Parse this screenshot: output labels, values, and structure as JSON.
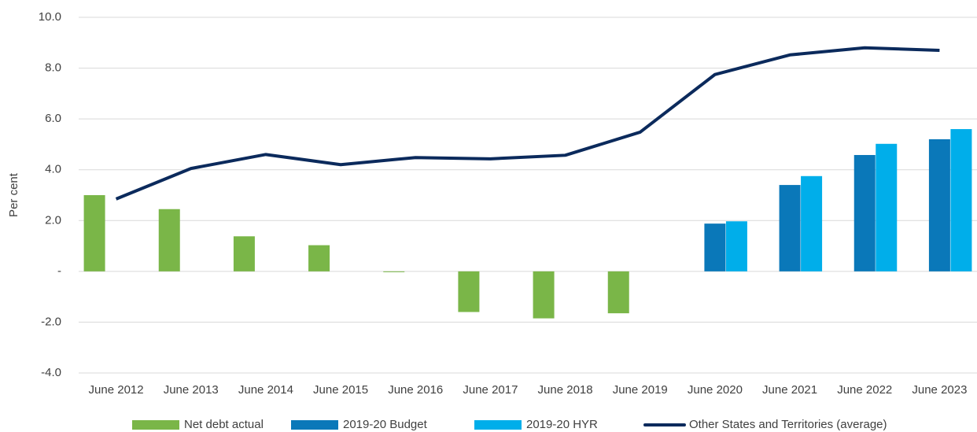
{
  "chart_data": {
    "type": "bar-line",
    "ylabel": "Per cent",
    "categories": [
      "June 2012",
      "June 2013",
      "June 2014",
      "June 2015",
      "June 2016",
      "June 2017",
      "June 2018",
      "June 2019",
      "June 2020",
      "June 2021",
      "June 2022",
      "June 2023"
    ],
    "series": [
      {
        "name": "Net debt actual",
        "type": "bar",
        "color": "#7ab648",
        "values": [
          3.0,
          2.45,
          1.38,
          1.03,
          -0.03,
          -1.6,
          -1.85,
          -1.65,
          null,
          null,
          null,
          null
        ]
      },
      {
        "name": "2019-20 Budget",
        "type": "bar",
        "color": "#0a78b9",
        "values": [
          null,
          null,
          null,
          null,
          null,
          null,
          null,
          null,
          1.88,
          3.4,
          4.58,
          5.2
        ]
      },
      {
        "name": "2019-20 HYR",
        "type": "bar",
        "color": "#00aeea",
        "values": [
          null,
          null,
          null,
          null,
          null,
          null,
          null,
          null,
          1.97,
          3.75,
          5.02,
          5.6
        ]
      },
      {
        "name": "Other States and Territories (average)",
        "type": "line",
        "color": "#0b2a5c",
        "values": [
          2.85,
          4.05,
          4.6,
          4.2,
          4.48,
          4.43,
          4.57,
          5.48,
          7.75,
          8.52,
          8.8,
          8.7
        ]
      }
    ],
    "ylim": [
      -4,
      10
    ],
    "yticks": [
      {
        "value": -4,
        "label": "-4.0"
      },
      {
        "value": -2,
        "label": "-2.0"
      },
      {
        "value": 0,
        "label": "-"
      },
      {
        "value": 2,
        "label": "2.0"
      },
      {
        "value": 4,
        "label": "4.0"
      },
      {
        "value": 6,
        "label": "6.0"
      },
      {
        "value": 8,
        "label": "8.0"
      },
      {
        "value": 10,
        "label": "10.0"
      }
    ],
    "grid": true,
    "legend": "bottom"
  }
}
